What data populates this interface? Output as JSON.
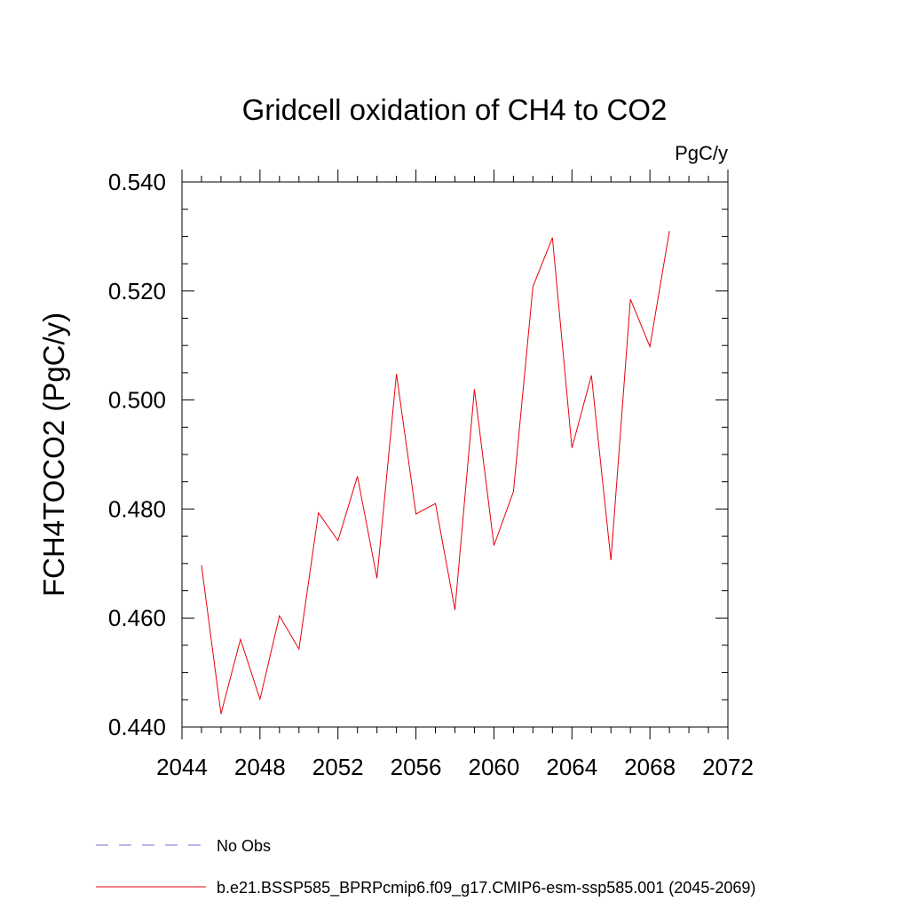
{
  "chart_data": {
    "type": "line",
    "title": "Gridcell oxidation of CH4 to CO2",
    "units": "PgC/y",
    "xlabel": "",
    "ylabel": "FCH4TOCO2  (PgC/y)",
    "xlim": [
      2044,
      2072
    ],
    "ylim": [
      0.44,
      0.54
    ],
    "x_ticks": [
      "2044",
      "2048",
      "2052",
      "2056",
      "2060",
      "2064",
      "2068",
      "2072"
    ],
    "y_ticks": [
      "0.440",
      "0.460",
      "0.480",
      "0.500",
      "0.520",
      "0.540"
    ],
    "x": [
      2045,
      2046,
      2047,
      2048,
      2049,
      2050,
      2051,
      2052,
      2053,
      2054,
      2055,
      2056,
      2057,
      2058,
      2059,
      2060,
      2061,
      2062,
      2063,
      2064,
      2065,
      2066,
      2067,
      2068,
      2069
    ],
    "series": [
      {
        "name": "b.e21.BSSP585_BPRPcmip6.f09_g17.CMIP6-esm-ssp585.001 (2045-2069)",
        "color": "#e8000b",
        "style": "solid",
        "values": [
          0.4697,
          0.4424,
          0.4561,
          0.4451,
          0.4604,
          0.4543,
          0.4793,
          0.4742,
          0.486,
          0.4673,
          0.5048,
          0.4791,
          0.481,
          0.4615,
          0.502,
          0.4733,
          0.4832,
          0.5208,
          0.5298,
          0.4912,
          0.5045,
          0.4706,
          0.5185,
          0.5098,
          0.531
        ]
      }
    ],
    "legend": [
      {
        "label": "No Obs",
        "color": "#7b6fd0",
        "style": "dashed"
      },
      {
        "label": "b.e21.BSSP585_BPRPcmip6.f09_g17.CMIP6-esm-ssp585.001 (2045-2069)",
        "color": "#e8000b",
        "style": "solid"
      }
    ],
    "legend_position": "bottom",
    "grid": false
  }
}
